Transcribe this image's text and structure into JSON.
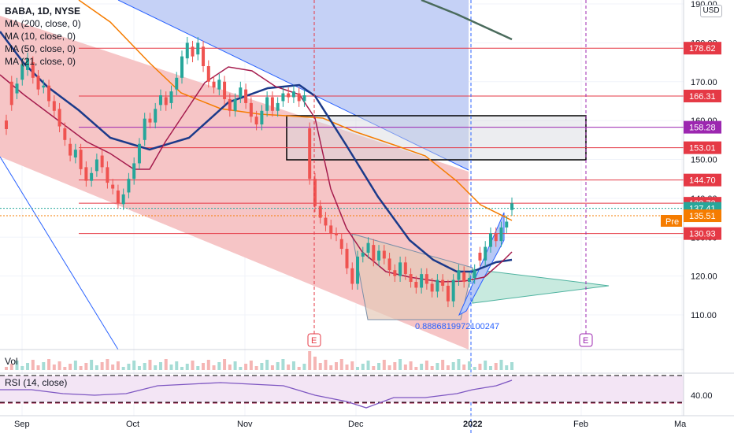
{
  "legend": {
    "title": "BABA, 1D, NYSE",
    "lines": [
      "MA (200, close, 0)",
      "MA (10, close, 0)",
      "MA (50, close, 0)",
      "MA (21, close, 0)"
    ]
  },
  "vol_label": "Vol",
  "rsi_label": "RSI (14, close)",
  "currency": "USD",
  "pre_label": "Pre",
  "fib_annotation": "0.8886819972100247",
  "event_marker": "E",
  "chart_data": {
    "type": "candlestick",
    "ylim": [
      104,
      190
    ],
    "y_ticks": [
      110,
      120,
      130,
      140,
      150,
      160,
      170,
      180,
      190
    ],
    "y_tick_labels": [
      "110.00",
      "120.00",
      "130.00",
      "140.00",
      "150.00",
      "160.00",
      "170.00",
      "180.00",
      "190.00"
    ],
    "x_ticks": [
      "Sep",
      "Oct",
      "Nov",
      "Dec",
      "2022",
      "Feb",
      "Ma"
    ],
    "rsi_tick": "40.00",
    "levels": [
      {
        "value": 178.62,
        "label": "178.62",
        "color": "#e53945"
      },
      {
        "value": 166.31,
        "label": "166.31",
        "color": "#e53945"
      },
      {
        "value": 158.28,
        "label": "158.28",
        "color": "#9c27b0"
      },
      {
        "value": 153.01,
        "label": "153.01",
        "color": "#e53945"
      },
      {
        "value": 144.7,
        "label": "144.70",
        "color": "#e53945"
      },
      {
        "value": 138.73,
        "label": "138.73",
        "color": "#e53945"
      },
      {
        "value": 137.41,
        "label": "137.41",
        "color": "#26a69a"
      },
      {
        "value": 135.51,
        "label": "135.51",
        "color": "#f57c00"
      },
      {
        "value": 130.93,
        "label": "130.93",
        "color": "#e53945"
      }
    ],
    "candles": [
      {
        "o": 160.0,
        "c": 157.8
      },
      {
        "o": 170.0,
        "c": 164.0
      },
      {
        "o": 167.0,
        "c": 169.5
      },
      {
        "o": 170.5,
        "c": 174.5
      },
      {
        "o": 173.0,
        "c": 176.0
      },
      {
        "o": 175.0,
        "c": 171.0
      },
      {
        "o": 171.5,
        "c": 168.0
      },
      {
        "o": 168.5,
        "c": 169.0
      },
      {
        "o": 169.0,
        "c": 165.0
      },
      {
        "o": 165.0,
        "c": 162.5
      },
      {
        "o": 163.0,
        "c": 158.5
      },
      {
        "o": 158.0,
        "c": 155.0
      },
      {
        "o": 154.0,
        "c": 151.0
      },
      {
        "o": 150.5,
        "c": 152.5
      },
      {
        "o": 152.5,
        "c": 147.5
      },
      {
        "o": 148.0,
        "c": 144.5
      },
      {
        "o": 144.5,
        "c": 146.5
      },
      {
        "o": 147.0,
        "c": 150.0
      },
      {
        "o": 151.0,
        "c": 148.0
      },
      {
        "o": 148.0,
        "c": 144.0
      },
      {
        "o": 143.5,
        "c": 142.5
      },
      {
        "o": 142.0,
        "c": 138.8
      },
      {
        "o": 138.5,
        "c": 141.0
      },
      {
        "o": 141.5,
        "c": 145.0
      },
      {
        "o": 145.0,
        "c": 149.0
      },
      {
        "o": 149.0,
        "c": 154.0
      },
      {
        "o": 155.0,
        "c": 160.5
      },
      {
        "o": 160.5,
        "c": 159.5
      },
      {
        "o": 159.5,
        "c": 163.0
      },
      {
        "o": 164.0,
        "c": 166.5
      },
      {
        "o": 166.0,
        "c": 164.0
      },
      {
        "o": 164.5,
        "c": 167.5
      },
      {
        "o": 168.0,
        "c": 171.0
      },
      {
        "o": 171.0,
        "c": 176.5
      },
      {
        "o": 176.0,
        "c": 180.0
      },
      {
        "o": 179.0,
        "c": 176.5
      },
      {
        "o": 177.0,
        "c": 180.0
      },
      {
        "o": 179.0,
        "c": 174.0
      },
      {
        "o": 174.0,
        "c": 170.0
      },
      {
        "o": 170.0,
        "c": 168.5
      },
      {
        "o": 168.0,
        "c": 170.5
      },
      {
        "o": 170.0,
        "c": 165.5
      },
      {
        "o": 165.5,
        "c": 162.5
      },
      {
        "o": 162.5,
        "c": 165.5
      },
      {
        "o": 166.0,
        "c": 168.5
      },
      {
        "o": 168.0,
        "c": 164.5
      },
      {
        "o": 164.5,
        "c": 161.0
      },
      {
        "o": 161.0,
        "c": 159.0
      },
      {
        "o": 159.0,
        "c": 162.5
      },
      {
        "o": 162.5,
        "c": 166.0
      },
      {
        "o": 166.0,
        "c": 162.5
      },
      {
        "o": 162.5,
        "c": 164.5
      },
      {
        "o": 165.0,
        "c": 167.0
      },
      {
        "o": 167.0,
        "c": 166.0
      },
      {
        "o": 166.0,
        "c": 167.5
      },
      {
        "o": 167.0,
        "c": 165.0
      },
      {
        "o": 165.0,
        "c": 166.5
      },
      {
        "o": 158.0,
        "c": 145.0
      },
      {
        "o": 145.0,
        "c": 138.0
      },
      {
        "o": 138.0,
        "c": 135.0
      },
      {
        "o": 135.0,
        "c": 133.0
      },
      {
        "o": 133.0,
        "c": 131.0
      },
      {
        "o": 131.0,
        "c": 130.5
      },
      {
        "o": 129.5,
        "c": 127.0
      },
      {
        "o": 127.0,
        "c": 122.0
      },
      {
        "o": 122.0,
        "c": 118.0
      },
      {
        "o": 118.0,
        "c": 125.0
      },
      {
        "o": 125.0,
        "c": 126.0
      },
      {
        "o": 126.0,
        "c": 128.5
      },
      {
        "o": 128.0,
        "c": 124.0
      },
      {
        "o": 124.0,
        "c": 126.5
      },
      {
        "o": 126.5,
        "c": 124.5
      },
      {
        "o": 124.5,
        "c": 121.5
      },
      {
        "o": 121.5,
        "c": 120.0
      },
      {
        "o": 120.0,
        "c": 123.5
      },
      {
        "o": 123.5,
        "c": 120.5
      },
      {
        "o": 120.5,
        "c": 118.5
      },
      {
        "o": 118.5,
        "c": 117.0
      },
      {
        "o": 117.0,
        "c": 120.5
      },
      {
        "o": 120.5,
        "c": 118.0
      },
      {
        "o": 118.0,
        "c": 116.0
      },
      {
        "o": 116.0,
        "c": 119.0
      },
      {
        "o": 119.0,
        "c": 117.5
      },
      {
        "o": 117.5,
        "c": 113.5
      },
      {
        "o": 113.5,
        "c": 119.0
      },
      {
        "o": 119.0,
        "c": 121.5
      },
      {
        "o": 121.0,
        "c": 118.5
      },
      {
        "o": 118.5,
        "c": 119.5
      },
      {
        "o": 119.5,
        "c": 121.5
      },
      {
        "o": 126.0,
        "c": 124.0
      },
      {
        "o": 124.0,
        "c": 127.5
      },
      {
        "o": 127.5,
        "c": 131.0
      },
      {
        "o": 131.0,
        "c": 129.0
      },
      {
        "o": 129.0,
        "c": 132.5
      },
      {
        "o": 132.5,
        "c": 134.0
      },
      {
        "o": 137.0,
        "c": 138.7
      }
    ]
  }
}
